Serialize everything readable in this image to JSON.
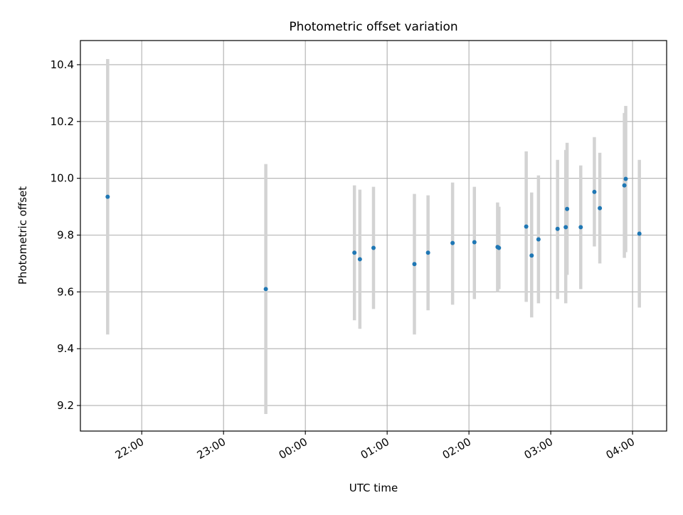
{
  "chart_data": {
    "type": "scatter",
    "title": "Photometric offset variation",
    "xlabel": "UTC time",
    "ylabel": "Photometric offset",
    "x_is_time": true,
    "xlim": [
      "21:15",
      "04:25"
    ],
    "ylim": [
      9.11,
      10.485
    ],
    "xticks": [
      "22:00",
      "23:00",
      "00:00",
      "01:00",
      "02:00",
      "03:00",
      "04:00"
    ],
    "yticks": [
      "9.2",
      "9.4",
      "9.6",
      "9.8",
      "10.0",
      "10.2",
      "10.4"
    ],
    "grid": true,
    "legend": "none",
    "colors": {
      "point": "#1f77b4",
      "errorbar": "#d3d3d3",
      "grid": "#b0b0b0"
    },
    "points": [
      {
        "x": "21:35",
        "y": 9.935,
        "lo": 9.45,
        "hi": 10.42
      },
      {
        "x": "23:31",
        "y": 9.61,
        "lo": 9.17,
        "hi": 10.05
      },
      {
        "x": "00:36",
        "y": 9.738,
        "lo": 9.5,
        "hi": 9.975
      },
      {
        "x": "00:40",
        "y": 9.715,
        "lo": 9.47,
        "hi": 9.96
      },
      {
        "x": "00:50",
        "y": 9.755,
        "lo": 9.54,
        "hi": 9.97
      },
      {
        "x": "01:20",
        "y": 9.698,
        "lo": 9.45,
        "hi": 9.945
      },
      {
        "x": "01:30",
        "y": 9.738,
        "lo": 9.535,
        "hi": 9.94
      },
      {
        "x": "01:48",
        "y": 9.772,
        "lo": 9.555,
        "hi": 9.985
      },
      {
        "x": "02:04",
        "y": 9.775,
        "lo": 9.575,
        "hi": 9.97
      },
      {
        "x": "02:21",
        "y": 9.758,
        "lo": 9.6,
        "hi": 9.915
      },
      {
        "x": "02:22",
        "y": 9.755,
        "lo": 9.61,
        "hi": 9.9
      },
      {
        "x": "02:42",
        "y": 9.83,
        "lo": 9.565,
        "hi": 10.095
      },
      {
        "x": "02:46",
        "y": 9.728,
        "lo": 9.51,
        "hi": 9.95
      },
      {
        "x": "02:51",
        "y": 9.785,
        "lo": 9.56,
        "hi": 10.01
      },
      {
        "x": "03:05",
        "y": 9.822,
        "lo": 9.575,
        "hi": 10.065
      },
      {
        "x": "03:11",
        "y": 9.828,
        "lo": 9.56,
        "hi": 10.1
      },
      {
        "x": "03:12",
        "y": 9.892,
        "lo": 9.66,
        "hi": 10.125
      },
      {
        "x": "03:22",
        "y": 9.828,
        "lo": 9.61,
        "hi": 10.045
      },
      {
        "x": "03:32",
        "y": 9.952,
        "lo": 9.76,
        "hi": 10.145
      },
      {
        "x": "03:36",
        "y": 9.895,
        "lo": 9.7,
        "hi": 10.09
      },
      {
        "x": "03:54",
        "y": 9.975,
        "lo": 9.72,
        "hi": 10.23
      },
      {
        "x": "03:55",
        "y": 9.998,
        "lo": 9.74,
        "hi": 10.255
      },
      {
        "x": "04:05",
        "y": 9.805,
        "lo": 9.545,
        "hi": 10.065
      }
    ]
  }
}
